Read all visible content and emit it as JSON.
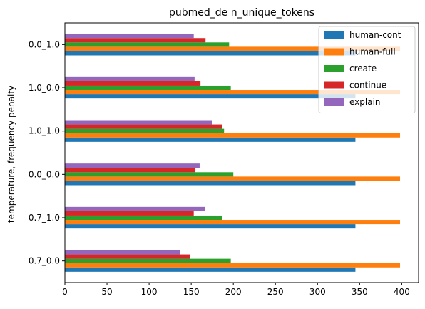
{
  "chart_data": {
    "type": "bar",
    "orientation": "horizontal",
    "title": "pubmed_de n_unique_tokens",
    "ylabel": "temperature, frequency penalty",
    "xlabel": "",
    "xlim": [
      0,
      420
    ],
    "xticks": [
      0,
      50,
      100,
      150,
      200,
      250,
      300,
      350,
      400
    ],
    "categories": [
      "0.7_0.0",
      "0.7_1.0",
      "0.0_0.0",
      "1.0_1.0",
      "1.0_0.0",
      "0.0_1.0"
    ],
    "series": [
      {
        "name": "human-cont",
        "color": "#1f77b4",
        "values": [
          345,
          345,
          345,
          345,
          345,
          345
        ]
      },
      {
        "name": "human-full",
        "color": "#ff7f0e",
        "values": [
          398,
          398,
          398,
          398,
          398,
          398
        ]
      },
      {
        "name": "create",
        "color": "#2ca02c",
        "values": [
          197,
          187,
          200,
          189,
          197,
          195
        ]
      },
      {
        "name": "continue",
        "color": "#d62728",
        "values": [
          149,
          153,
          155,
          187,
          161,
          167
        ]
      },
      {
        "name": "explain",
        "color": "#9467bd",
        "values": [
          137,
          166,
          160,
          175,
          154,
          153
        ]
      }
    ],
    "legend_position": "top-right",
    "grid": false
  }
}
